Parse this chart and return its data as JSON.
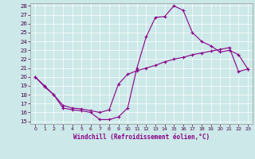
{
  "xlabel": "Windchill (Refroidissement éolien,°C)",
  "xlim": [
    -0.5,
    23.5
  ],
  "ylim": [
    14.7,
    28.3
  ],
  "yticks": [
    15,
    16,
    17,
    18,
    19,
    20,
    21,
    22,
    23,
    24,
    25,
    26,
    27,
    28
  ],
  "xticks": [
    0,
    1,
    2,
    3,
    4,
    5,
    6,
    7,
    8,
    9,
    10,
    11,
    12,
    13,
    14,
    15,
    16,
    17,
    18,
    19,
    20,
    21,
    22,
    23
  ],
  "bg_color": "#cce8e8",
  "line_color": "#880088",
  "line1_x": [
    0,
    1,
    2,
    3,
    4,
    5,
    6,
    7,
    8,
    9,
    10,
    11,
    12,
    13,
    14,
    15,
    16,
    17,
    18,
    19,
    20,
    21,
    22,
    23
  ],
  "line1_y": [
    20.0,
    19.0,
    18.0,
    16.5,
    16.3,
    16.2,
    16.0,
    15.2,
    15.2,
    15.5,
    16.5,
    21.0,
    24.5,
    26.7,
    26.8,
    28.0,
    27.5,
    25.0,
    24.0,
    23.5,
    22.8,
    23.0,
    22.5,
    20.9
  ],
  "line2_x": [
    0,
    1,
    2,
    3,
    4,
    5,
    6,
    7,
    8,
    9,
    10,
    11,
    12,
    13,
    14,
    15,
    16,
    17,
    18,
    19,
    20,
    21,
    22,
    23
  ],
  "line2_y": [
    20.0,
    18.9,
    18.0,
    16.8,
    16.5,
    16.4,
    16.2,
    16.0,
    16.3,
    19.2,
    20.3,
    20.7,
    21.0,
    21.3,
    21.7,
    22.0,
    22.2,
    22.5,
    22.7,
    22.9,
    23.1,
    23.3,
    20.6,
    20.9
  ]
}
